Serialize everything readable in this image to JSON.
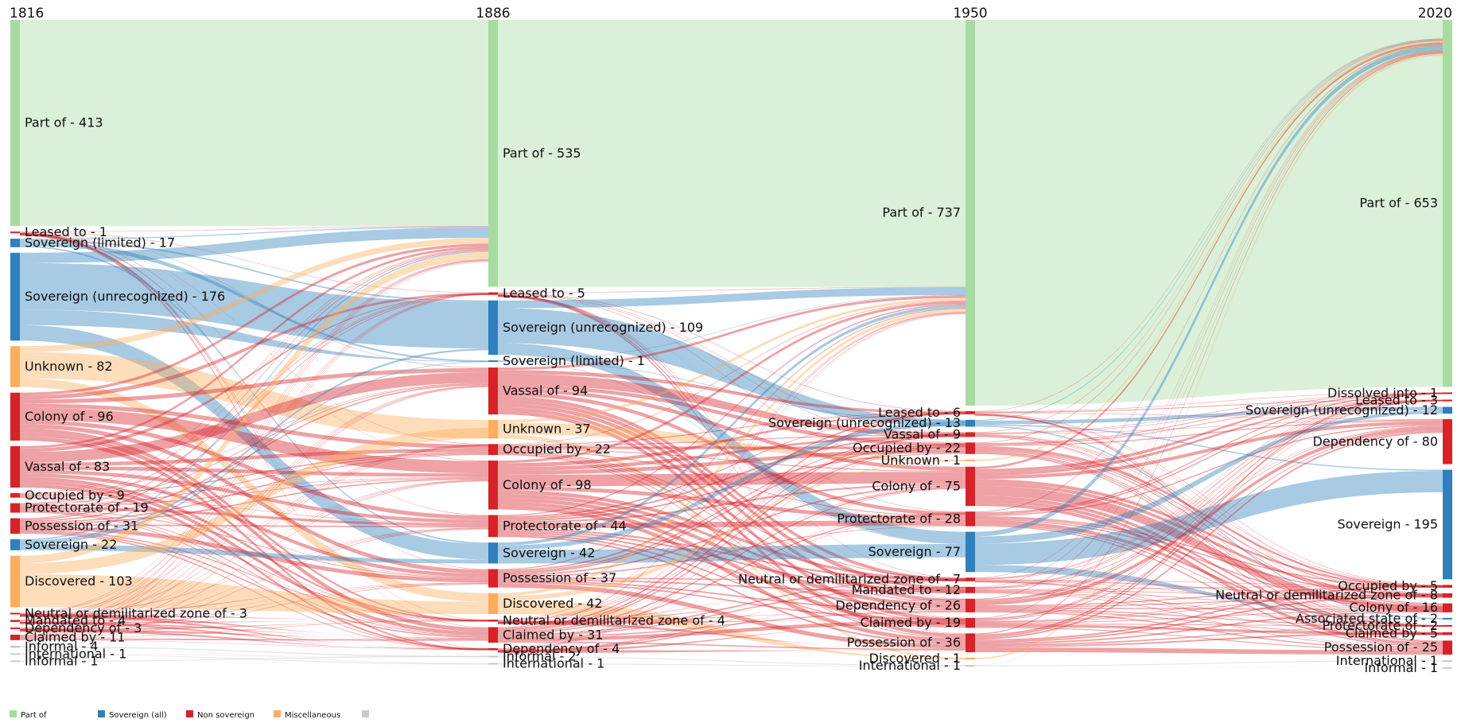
{
  "colors": {
    "part_of": "#a8dba1",
    "sovereign": "#2f80bd",
    "non_sovereign": "#d62228",
    "misc": "#fcad5e",
    "other": "#c9c9c9"
  },
  "years": [
    "1816",
    "1886",
    "1950",
    "2020"
  ],
  "columns": [
    {
      "year": "1816",
      "nodes": [
        {
          "label": "Part of - 413",
          "cat": "part_of",
          "value": 413
        },
        {
          "label": "Leased to - 1",
          "cat": "non_sovereign",
          "value": 1
        },
        {
          "label": "Sovereign (limited) - 17",
          "cat": "sovereign",
          "value": 17
        },
        {
          "label": "Sovereign (unrecognized) - 176",
          "cat": "sovereign",
          "value": 176
        },
        {
          "label": "Unknown - 82",
          "cat": "misc",
          "value": 82
        },
        {
          "label": "Colony of - 96",
          "cat": "non_sovereign",
          "value": 96
        },
        {
          "label": "Vassal of - 83",
          "cat": "non_sovereign",
          "value": 83
        },
        {
          "label": "Occupied by - 9",
          "cat": "non_sovereign",
          "value": 9
        },
        {
          "label": "Protectorate of - 19",
          "cat": "non_sovereign",
          "value": 19
        },
        {
          "label": "Possession of - 31",
          "cat": "non_sovereign",
          "value": 31
        },
        {
          "label": "Sovereign - 22",
          "cat": "sovereign",
          "value": 22
        },
        {
          "label": "Discovered - 103",
          "cat": "misc",
          "value": 103
        },
        {
          "label": "Neutral or demilitarized zone of - 3",
          "cat": "non_sovereign",
          "value": 3
        },
        {
          "label": "Mandated to - 4",
          "cat": "non_sovereign",
          "value": 4
        },
        {
          "label": "Dependency of - 3",
          "cat": "non_sovereign",
          "value": 3
        },
        {
          "label": "Claimed by - 11",
          "cat": "non_sovereign",
          "value": 11
        },
        {
          "label": "Informal - 4",
          "cat": "other",
          "value": 4
        },
        {
          "label": "International - 1",
          "cat": "other",
          "value": 1
        },
        {
          "label": "Informal - 1",
          "cat": "other",
          "value": 1
        }
      ]
    },
    {
      "year": "1886",
      "nodes": [
        {
          "label": "Part of - 535",
          "cat": "part_of",
          "value": 535
        },
        {
          "label": "Leased to - 5",
          "cat": "non_sovereign",
          "value": 5
        },
        {
          "label": "Sovereign (unrecognized) - 109",
          "cat": "sovereign",
          "value": 109
        },
        {
          "label": "Sovereign (limited) - 1",
          "cat": "sovereign",
          "value": 1
        },
        {
          "label": "Vassal of - 94",
          "cat": "non_sovereign",
          "value": 94
        },
        {
          "label": "Unknown - 37",
          "cat": "misc",
          "value": 37
        },
        {
          "label": "Occupied by - 22",
          "cat": "non_sovereign",
          "value": 22
        },
        {
          "label": "Colony of - 98",
          "cat": "non_sovereign",
          "value": 98
        },
        {
          "label": "Protectorate of - 44",
          "cat": "non_sovereign",
          "value": 44
        },
        {
          "label": "Sovereign - 42",
          "cat": "sovereign",
          "value": 42
        },
        {
          "label": "Possession of - 37",
          "cat": "non_sovereign",
          "value": 37
        },
        {
          "label": "Discovered - 42",
          "cat": "misc",
          "value": 42
        },
        {
          "label": "Neutral or demilitarized zone of - 4",
          "cat": "non_sovereign",
          "value": 4
        },
        {
          "label": "Claimed by - 31",
          "cat": "non_sovereign",
          "value": 31
        },
        {
          "label": "Dependency of - 4",
          "cat": "non_sovereign",
          "value": 4
        },
        {
          "label": "Informal - 2",
          "cat": "other",
          "value": 2
        },
        {
          "label": "International - 1",
          "cat": "other",
          "value": 1
        }
      ]
    },
    {
      "year": "1950",
      "nodes": [
        {
          "label": "Part of - 737",
          "cat": "part_of",
          "value": 737
        },
        {
          "label": "Leased to - 6",
          "cat": "non_sovereign",
          "value": 6
        },
        {
          "label": "Sovereign (unrecognized) - 13",
          "cat": "sovereign",
          "value": 13
        },
        {
          "label": "Vassal of - 9",
          "cat": "non_sovereign",
          "value": 9
        },
        {
          "label": "Occupied by - 22",
          "cat": "non_sovereign",
          "value": 22
        },
        {
          "label": "Unknown - 1",
          "cat": "misc",
          "value": 1
        },
        {
          "label": "Colony of - 75",
          "cat": "non_sovereign",
          "value": 75
        },
        {
          "label": "Protectorate of - 28",
          "cat": "non_sovereign",
          "value": 28
        },
        {
          "label": "Sovereign - 77",
          "cat": "sovereign",
          "value": 77
        },
        {
          "label": "Neutral or demilitarized zone of - 7",
          "cat": "non_sovereign",
          "value": 7
        },
        {
          "label": "Mandated to - 12",
          "cat": "non_sovereign",
          "value": 12
        },
        {
          "label": "Dependency of - 26",
          "cat": "non_sovereign",
          "value": 26
        },
        {
          "label": "Claimed by - 19",
          "cat": "non_sovereign",
          "value": 19
        },
        {
          "label": "Possession of - 36",
          "cat": "non_sovereign",
          "value": 36
        },
        {
          "label": "Discovered - 1",
          "cat": "misc",
          "value": 1
        },
        {
          "label": "International - 1",
          "cat": "other",
          "value": 1
        }
      ]
    },
    {
      "year": "2020",
      "nodes": [
        {
          "label": "Part of - 653",
          "cat": "part_of",
          "value": 653
        },
        {
          "label": "Dissolved into - 1",
          "cat": "non_sovereign",
          "value": 1
        },
        {
          "label": "Leased to - 3",
          "cat": "non_sovereign",
          "value": 3
        },
        {
          "label": "Sovereign (unrecognized) - 12",
          "cat": "sovereign",
          "value": 12
        },
        {
          "label": "Dependency of - 80",
          "cat": "non_sovereign",
          "value": 80
        },
        {
          "label": "Sovereign - 195",
          "cat": "sovereign",
          "value": 195
        },
        {
          "label": "Occupied by - 5",
          "cat": "non_sovereign",
          "value": 5
        },
        {
          "label": "Neutral or demilitarized zone of - 8",
          "cat": "non_sovereign",
          "value": 8
        },
        {
          "label": "Colony of - 16",
          "cat": "non_sovereign",
          "value": 16
        },
        {
          "label": "Associated state of - 2",
          "cat": "sovereign",
          "value": 2
        },
        {
          "label": "Protectorate of - 2",
          "cat": "non_sovereign",
          "value": 2
        },
        {
          "label": "Claimed by - 5",
          "cat": "non_sovereign",
          "value": 5
        },
        {
          "label": "Possession of - 25",
          "cat": "non_sovereign",
          "value": 25
        },
        {
          "label": "International - 1",
          "cat": "other",
          "value": 1
        },
        {
          "label": "Informal - 1",
          "cat": "other",
          "value": 1
        }
      ]
    }
  ],
  "legend": [
    {
      "label": "Part of",
      "cat": "part_of"
    },
    {
      "label": "Sovereign (all)",
      "cat": "sovereign"
    },
    {
      "label": "Non sovereign",
      "cat": "non_sovereign"
    },
    {
      "label": "Miscellaneous",
      "cat": "misc"
    },
    {
      "label": "",
      "cat": "other"
    }
  ]
}
